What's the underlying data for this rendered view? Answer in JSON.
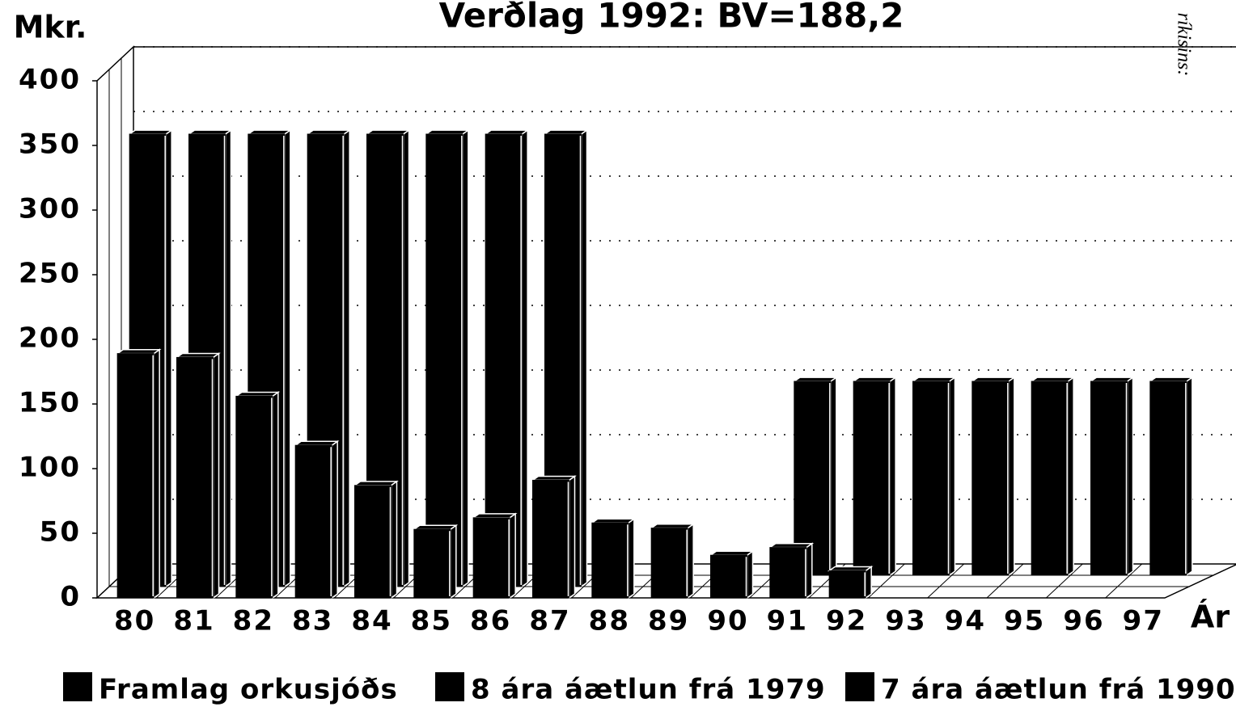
{
  "chart_data": {
    "type": "bar3d",
    "title": "Verðlag 1992: BV=188,2",
    "y_label": "Mkr.",
    "x_label": "Ár",
    "annotation": "ríkisins:",
    "categories": [
      "80",
      "81",
      "82",
      "83",
      "84",
      "85",
      "86",
      "87",
      "88",
      "89",
      "90",
      "91",
      "92",
      "93",
      "94",
      "95",
      "96",
      "97"
    ],
    "series": [
      {
        "name": "Framlag orkusjóðs",
        "color": "#000000",
        "values": [
          189,
          186,
          156,
          118,
          87,
          53,
          62,
          91,
          58,
          54,
          33,
          39,
          21,
          null,
          null,
          null,
          null,
          null
        ]
      },
      {
        "name": "8 ára áætlun frá 1979",
        "color": "#000000",
        "values": [
          350,
          350,
          350,
          350,
          350,
          350,
          350,
          350,
          null,
          null,
          null,
          null,
          null,
          null,
          null,
          null,
          null,
          null
        ]
      },
      {
        "name": "7 ára áætlun frá 1990",
        "color": "#000000",
        "values": [
          null,
          null,
          null,
          null,
          null,
          null,
          null,
          null,
          null,
          null,
          null,
          150,
          150,
          150,
          150,
          150,
          150,
          150
        ]
      }
    ],
    "ylim": [
      0,
      400
    ],
    "yticks": [
      0,
      50,
      100,
      150,
      200,
      250,
      300,
      350,
      400
    ],
    "grid": true
  }
}
